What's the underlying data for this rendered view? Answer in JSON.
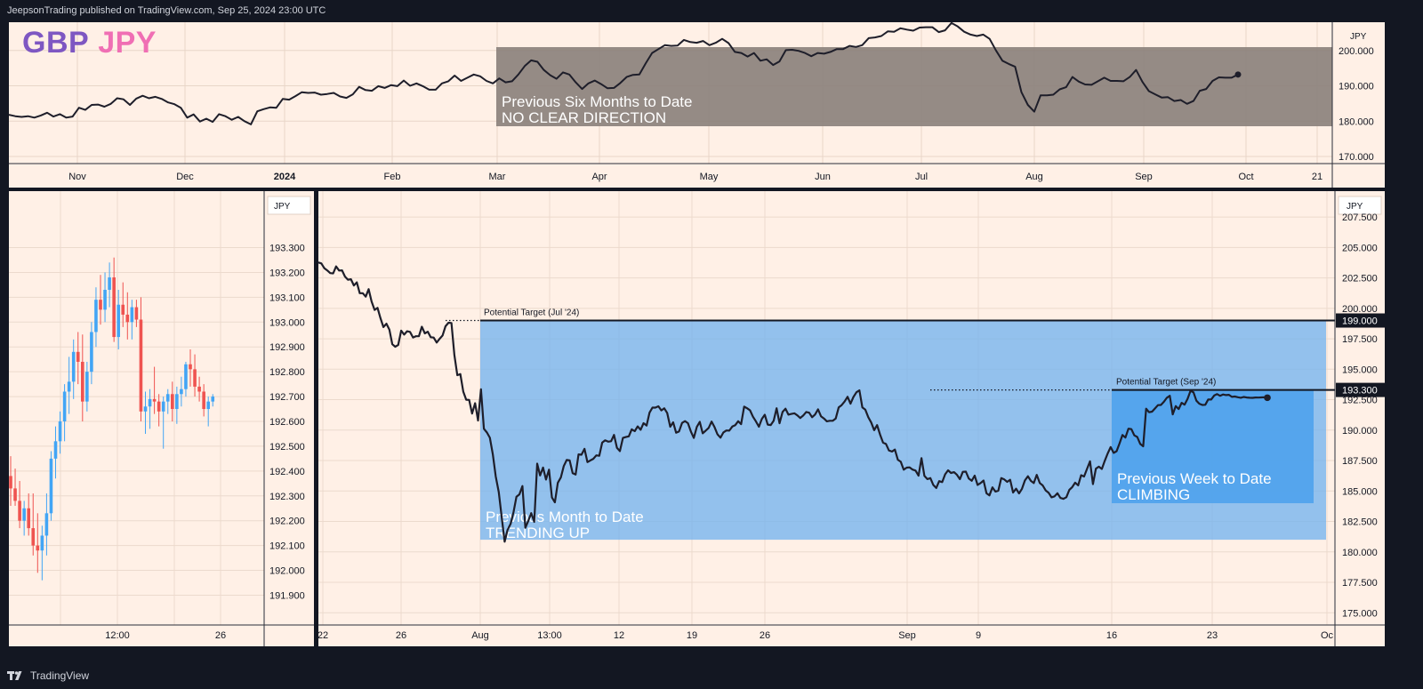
{
  "header": {
    "publisher": "JeepsonTrading published on TradingView.com, Sep 25, 2024 23:00 UTC"
  },
  "footer": {
    "brand": "TradingView"
  },
  "symbol": {
    "base": "GBP",
    "quote": "JPY",
    "base_color": "#7e57c2",
    "quote_color": "#f06fb4"
  },
  "colors": {
    "background": "#fff0e6",
    "line": "#1e1e2a",
    "up": "#42a5f5",
    "down": "#ef5350",
    "gray_box": "#8a7f7a",
    "blue_box": "#74b4ee",
    "blue_box_dark": "#4fa2ec"
  },
  "chart_data": [
    {
      "id": "top",
      "type": "line",
      "unit_label": "JPY",
      "x_tick_labels": [
        "Nov",
        "Dec",
        "2024",
        "Feb",
        "Mar",
        "Apr",
        "May",
        "Jun",
        "Jul",
        "Aug",
        "Sep",
        "Oct",
        "21"
      ],
      "y_tick_labels": [
        "200.000",
        "190.000",
        "180.000",
        "170.000"
      ],
      "ylim": [
        168,
        208
      ],
      "annotations": [
        {
          "text1": "Previous Six Months to Date",
          "text2": "NO CLEAR DIRECTION"
        }
      ],
      "x_index_range": [
        0,
        100
      ],
      "y": [
        181.8,
        181.4,
        181.2,
        181.4,
        181.0,
        181.6,
        182.4,
        181.3,
        182.0,
        181.0,
        181.3,
        183.8,
        183.2,
        184.6,
        184.7,
        184.1,
        184.9,
        186.5,
        186.2,
        184.6,
        186.4,
        187.2,
        186.5,
        186.9,
        186.3,
        185.3,
        184.8,
        183.8,
        181.0,
        181.9,
        179.9,
        180.7,
        179.8,
        182.0,
        181.4,
        180.4,
        181.2,
        180.0,
        179.1,
        182.8,
        183.4,
        183.9,
        183.8,
        186.3,
        186.1,
        187.1,
        188.2,
        188.0,
        188.1,
        187.5,
        187.7,
        188.0,
        187.0,
        186.6,
        187.6,
        189.7,
        188.8,
        188.6,
        189.9,
        189.4,
        190.2,
        189.9,
        191.5,
        190.0,
        190.7,
        189.9,
        188.9,
        188.9,
        190.7,
        191.3,
        192.9,
        191.4,
        192.3,
        193.2,
        192.7,
        191.4,
        190.7,
        192.1,
        191.0,
        191.3,
        193.2,
        195.6,
        197.2,
        196.8,
        194.5,
        193.0,
        192.0,
        193.8,
        193.2,
        191.0,
        189.1,
        190.7,
        191.5,
        190.5,
        189.3,
        189.4,
        190.8,
        192.5,
        193.1,
        193.2,
        196.4,
        199.3,
        200.4,
        201.5,
        201.3,
        201.4,
        203.0,
        202.4,
        202.2,
        202.7,
        201.5,
        202.2,
        203.3,
        202.1,
        199.6,
        199.3,
        198.3,
        199.3,
        197.1,
        197.5,
        195.9,
        196.9,
        200.1,
        200.2,
        199.9,
        199.3,
        198.4,
        199.3,
        199.1,
        199.6,
        200.4,
        200.4,
        201.3,
        201.0,
        201.5,
        203.5,
        203.7,
        204.1,
        205.4,
        205.3,
        206.3,
        205.9,
        205.6,
        206.5,
        206.6,
        206.6,
        205.2,
        205.7,
        207.8,
        206.8,
        205.3,
        204.5,
        204.1,
        204.5,
        203.3,
        200.0,
        197.1,
        196.2,
        195.4,
        188.2,
        184.6,
        182.7,
        187.3,
        187.3,
        187.5,
        189.0,
        189.6,
        192.5,
        191.2,
        190.4,
        190.3,
        191.3,
        192.3,
        191.4,
        191.4,
        191.3,
        192.5,
        194.5,
        191.1,
        188.5,
        187.6,
        186.7,
        186.8,
        185.7,
        186.0,
        184.9,
        185.7,
        188.6,
        189.1,
        191.4,
        192.4,
        192.3,
        192.3,
        193.2
      ]
    },
    {
      "id": "left",
      "type": "candlestick",
      "unit_label": "JPY",
      "x_tick_labels": [
        "12:00",
        "26"
      ],
      "y_tick_labels": [
        "193.300",
        "193.200",
        "193.100",
        "193.000",
        "192.900",
        "192.800",
        "192.700",
        "192.600",
        "192.500",
        "192.400",
        "192.300",
        "192.200",
        "192.100",
        "192.000",
        "191.900"
      ],
      "ylim": [
        191.78,
        193.42
      ],
      "candles": [
        {
          "o": 192.38,
          "h": 192.46,
          "l": 192.26,
          "c": 192.33
        },
        {
          "o": 192.33,
          "h": 192.41,
          "l": 192.26,
          "c": 192.28
        },
        {
          "o": 192.28,
          "h": 192.36,
          "l": 192.17,
          "c": 192.2
        },
        {
          "o": 192.2,
          "h": 192.28,
          "l": 192.14,
          "c": 192.25
        },
        {
          "o": 192.25,
          "h": 192.31,
          "l": 192.14,
          "c": 192.17
        },
        {
          "o": 192.17,
          "h": 192.31,
          "l": 192.06,
          "c": 192.1
        },
        {
          "o": 192.1,
          "h": 192.23,
          "l": 191.99,
          "c": 192.08
        },
        {
          "o": 192.08,
          "h": 192.18,
          "l": 191.96,
          "c": 192.14
        },
        {
          "o": 192.14,
          "h": 192.31,
          "l": 192.06,
          "c": 192.23
        },
        {
          "o": 192.23,
          "h": 192.48,
          "l": 192.2,
          "c": 192.45
        },
        {
          "o": 192.45,
          "h": 192.58,
          "l": 192.37,
          "c": 192.52
        },
        {
          "o": 192.52,
          "h": 192.64,
          "l": 192.47,
          "c": 192.6
        },
        {
          "o": 192.6,
          "h": 192.75,
          "l": 192.52,
          "c": 192.72
        },
        {
          "o": 192.72,
          "h": 192.86,
          "l": 192.63,
          "c": 192.76
        },
        {
          "o": 192.76,
          "h": 192.93,
          "l": 192.69,
          "c": 192.88
        },
        {
          "o": 192.88,
          "h": 192.96,
          "l": 192.75,
          "c": 192.84
        },
        {
          "o": 192.84,
          "h": 192.95,
          "l": 192.6,
          "c": 192.68
        },
        {
          "o": 192.68,
          "h": 192.84,
          "l": 192.64,
          "c": 192.8
        },
        {
          "o": 192.8,
          "h": 193.0,
          "l": 192.75,
          "c": 192.96
        },
        {
          "o": 192.96,
          "h": 193.14,
          "l": 192.9,
          "c": 193.09
        },
        {
          "o": 193.09,
          "h": 193.19,
          "l": 192.99,
          "c": 193.05
        },
        {
          "o": 193.05,
          "h": 193.2,
          "l": 193.0,
          "c": 193.13
        },
        {
          "o": 193.13,
          "h": 193.24,
          "l": 193.06,
          "c": 193.18
        },
        {
          "o": 193.18,
          "h": 193.26,
          "l": 192.92,
          "c": 192.94
        },
        {
          "o": 192.94,
          "h": 193.13,
          "l": 192.89,
          "c": 193.07
        },
        {
          "o": 193.07,
          "h": 193.16,
          "l": 192.98,
          "c": 193.03
        },
        {
          "o": 193.03,
          "h": 193.12,
          "l": 192.93,
          "c": 193.0
        },
        {
          "o": 193.0,
          "h": 193.09,
          "l": 192.93,
          "c": 193.06
        },
        {
          "o": 193.06,
          "h": 193.09,
          "l": 192.98,
          "c": 193.01
        },
        {
          "o": 193.01,
          "h": 193.1,
          "l": 192.6,
          "c": 192.64
        },
        {
          "o": 192.64,
          "h": 192.72,
          "l": 192.55,
          "c": 192.66
        },
        {
          "o": 192.66,
          "h": 192.73,
          "l": 192.57,
          "c": 192.69
        },
        {
          "o": 192.69,
          "h": 192.82,
          "l": 192.63,
          "c": 192.68
        },
        {
          "o": 192.68,
          "h": 192.71,
          "l": 192.58,
          "c": 192.64
        },
        {
          "o": 192.64,
          "h": 192.7,
          "l": 192.49,
          "c": 192.68
        },
        {
          "o": 192.68,
          "h": 192.73,
          "l": 192.63,
          "c": 192.71
        },
        {
          "o": 192.71,
          "h": 192.76,
          "l": 192.6,
          "c": 192.65
        },
        {
          "o": 192.65,
          "h": 192.74,
          "l": 192.59,
          "c": 192.71
        },
        {
          "o": 192.71,
          "h": 192.78,
          "l": 192.66,
          "c": 192.73
        },
        {
          "o": 192.73,
          "h": 192.84,
          "l": 192.7,
          "c": 192.83
        },
        {
          "o": 192.83,
          "h": 192.89,
          "l": 192.74,
          "c": 192.81
        },
        {
          "o": 192.81,
          "h": 192.87,
          "l": 192.7,
          "c": 192.74
        },
        {
          "o": 192.74,
          "h": 192.78,
          "l": 192.68,
          "c": 192.72
        },
        {
          "o": 192.72,
          "h": 192.75,
          "l": 192.62,
          "c": 192.65
        },
        {
          "o": 192.65,
          "h": 192.7,
          "l": 192.58,
          "c": 192.68
        },
        {
          "o": 192.68,
          "h": 192.71,
          "l": 192.66,
          "c": 192.7
        }
      ]
    },
    {
      "id": "main",
      "type": "line",
      "unit_label": "JPY",
      "x_tick_labels": [
        "22",
        "26",
        "Aug",
        "13:00",
        "12",
        "19",
        "26",
        "Sep",
        "9",
        "16",
        "23",
        "Oc"
      ],
      "y_tick_labels": [
        "207.500",
        "205.000",
        "202.500",
        "200.000",
        "197.500",
        "195.000",
        "192.500",
        "190.000",
        "187.500",
        "185.000",
        "182.500",
        "180.000",
        "177.500",
        "175.000"
      ],
      "ylim": [
        174.0,
        208.6
      ],
      "price_labels": [
        {
          "value": 199.0,
          "text": "199.000"
        },
        {
          "value": 193.3,
          "text": "193.300"
        }
      ],
      "target_lines": [
        {
          "text": "Potential Target (Jul '24)",
          "value": 199.0
        },
        {
          "text": "Potential Target (Sep '24)",
          "value": 193.3
        }
      ],
      "annotations": [
        {
          "text1": "Previous Month to Date",
          "text2": "TRENDING UP"
        },
        {
          "text1": "Previous Week to Date",
          "text2": "CLIMBING"
        }
      ],
      "x_index_range": [
        0,
        100
      ],
      "y": [
        203.77,
        203.69,
        203.3,
        203.11,
        202.89,
        202.87,
        203.44,
        203.1,
        203.12,
        202.61,
        202.35,
        202.39,
        201.88,
        202.13,
        201.24,
        201.24,
        200.96,
        201.57,
        200.56,
        199.87,
        200.04,
        199.19,
        198.46,
        198.74,
        198.26,
        197.05,
        196.85,
        196.99,
        198.17,
        197.84,
        198.12,
        198.07,
        197.61,
        197.71,
        197.71,
        198.49,
        197.94,
        198.08,
        197.63,
        197.6,
        197.19,
        197.5,
        197.77,
        198.53,
        198.82,
        198.8,
        196.17,
        194.51,
        194.6,
        193.16,
        192.5,
        192.48,
        191.36,
        192.21,
        190.79,
        193.35,
        190.11,
        189.8,
        189.37,
        188.02,
        186.2,
        184.91,
        182.86,
        180.84,
        181.81,
        182.3,
        183.26,
        184.53,
        184.72,
        185.41,
        181.98,
        182.55,
        183.18,
        182.47,
        187.25,
        186.28,
        186.93,
        185.94,
        186.75,
        184.47,
        184.07,
        185.67,
        186.11,
        187.05,
        187.55,
        187.51,
        186.46,
        186.35,
        188.01,
        187.98,
        188.46,
        187.37,
        187.51,
        187.64,
        187.93,
        187.89,
        188.97,
        189.16,
        189.05,
        189.09,
        189.61,
        188.54,
        188.28,
        189.36,
        189.43,
        189.49,
        190.07,
        189.91,
        190.31,
        190.03,
        190.57,
        190.37,
        191.43,
        191.85,
        191.85,
        191.96,
        191.62,
        191.79,
        191.4,
        190.28,
        190.64,
        189.79,
        189.89,
        190.59,
        190.74,
        190.57,
        189.89,
        189.36,
        190.26,
        190.68,
        189.74,
        189.95,
        190.18,
        190.7,
        190.25,
        189.66,
        189.38,
        189.81,
        189.97,
        189.96,
        190.29,
        190.41,
        190.73,
        190.49,
        191.93,
        191.8,
        191.63,
        191.1,
        190.71,
        190.28,
        190.92,
        191.26,
        190.45,
        190.42,
        190.77,
        191.8,
        190.56,
        191.49,
        191.76,
        191.27,
        191.33,
        191.38,
        191.21,
        190.99,
        191.2,
        191.49,
        191.43,
        191.06,
        191.28,
        191.71,
        191.14,
        190.96,
        190.72,
        190.77,
        190.77,
        190.96,
        191.86,
        192.05,
        192.35,
        192.74,
        192.17,
        192.72,
        193.11,
        193.27,
        191.87,
        191.69,
        191.06,
        190.62,
        189.99,
        190.41,
        189.62,
        188.97,
        188.86,
        188.33,
        188.24,
        188.4,
        187.57,
        187.4,
        186.75,
        186.92,
        186.94,
        186.76,
        186.68,
        186.26,
        187.7,
        186.24,
        185.98,
        186.06,
        185.5,
        185.25,
        185.81,
        185.73,
        186.37,
        186.7,
        186.48,
        186.55,
        186.33,
        185.97,
        186.58,
        186.59,
        186.02,
        185.84,
        186.26,
        185.5,
        185.66,
        185.86,
        184.81,
        184.64,
        185.3,
        184.96,
        185.03,
        186.06,
        185.95,
        185.75,
        185.92,
        184.88,
        185.19,
        184.8,
        185.18,
        185.87,
        186.21,
        185.83,
        185.66,
        186.33,
        185.66,
        185.46,
        185.05,
        184.86,
        184.48,
        184.56,
        184.82,
        184.43,
        184.36,
        184.49,
        185.09,
        185.32,
        185.69,
        185.47,
        186.3,
        186.19,
        186.81,
        187.44,
        185.57,
        186.83,
        187.0,
        186.81,
        187.48,
        188.09,
        188.61,
        188.13,
        188.27,
        188.91,
        189.6,
        189.39,
        190.12,
        190.08,
        189.57,
        189.44,
        188.86,
        188.67,
        191.76,
        191.47,
        191.52,
        191.78,
        192.05,
        192.07,
        192.33,
        192.66,
        192.82,
        191.29,
        191.97,
        191.73,
        192.24,
        192.09,
        192.57,
        193.23,
        193.11,
        192.42,
        192.17,
        192.07,
        192.08,
        192.52,
        192.51,
        192.84,
        192.96,
        192.82,
        192.93,
        192.88,
        192.9,
        192.73,
        192.76,
        192.7,
        192.66,
        192.72,
        192.68,
        192.66,
        192.65,
        192.68,
        192.67,
        192.69,
        192.7,
        192.66
      ]
    }
  ]
}
